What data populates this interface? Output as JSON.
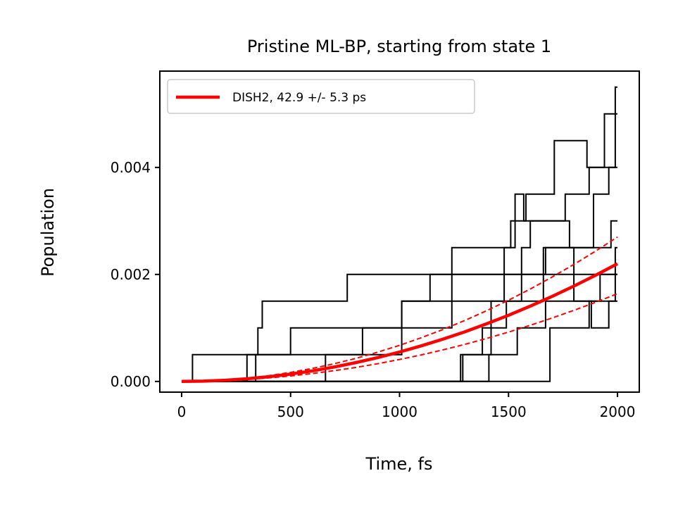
{
  "chart_data": {
    "type": "line",
    "title": "Pristine ML-BP, starting from state 1",
    "xlabel": "Time, fs",
    "ylabel": "Population",
    "xlim": [
      -100,
      2100
    ],
    "ylim": [
      -0.0002,
      0.0058
    ],
    "xticks": [
      {
        "value": 0,
        "label": "0"
      },
      {
        "value": 500,
        "label": "500"
      },
      {
        "value": 1000,
        "label": "1000"
      },
      {
        "value": 1500,
        "label": "1500"
      },
      {
        "value": 2000,
        "label": "2000"
      }
    ],
    "yticks": [
      {
        "value": 0,
        "label": "0.000"
      },
      {
        "value": 0.002,
        "label": "0.002"
      },
      {
        "value": 0.004,
        "label": "0.004"
      }
    ],
    "grid": false,
    "legend": {
      "position": "top-left",
      "entries": [
        {
          "label": "DISH2,  42.9 +/-  5.3 ps",
          "color": "#ff0000"
        }
      ]
    },
    "step_series": [
      {
        "color": "#000000",
        "x": [
          0,
          50,
          350,
          370,
          760,
          2000
        ],
        "y": [
          0,
          0.0005,
          0.001,
          0.0015,
          0.002,
          0.002
        ]
      },
      {
        "color": "#000000",
        "x": [
          0,
          300,
          520,
          1010,
          1240,
          1510,
          1580,
          1710,
          1860,
          1940,
          2000
        ],
        "y": [
          0,
          0.0005,
          0.0005,
          0.001,
          0.0025,
          0.003,
          0.0035,
          0.0045,
          0.004,
          0.005,
          0.005
        ]
      },
      {
        "color": "#000000",
        "x": [
          0,
          340,
          500,
          1010,
          1140,
          1480,
          1530,
          1570,
          1760,
          1870,
          1990,
          2000
        ],
        "y": [
          0,
          0.0005,
          0.001,
          0.0015,
          0.002,
          0.0025,
          0.0035,
          0.003,
          0.0035,
          0.004,
          0.0055,
          0.0055
        ]
      },
      {
        "color": "#000000",
        "x": [
          0,
          660,
          830,
          1010,
          1480,
          1560,
          1600,
          1780,
          1890,
          1960,
          2000
        ],
        "y": [
          0,
          0.0005,
          0.001,
          0.0015,
          0.002,
          0.0025,
          0.003,
          0.0025,
          0.0035,
          0.004,
          0.004
        ]
      },
      {
        "color": "#000000",
        "x": [
          0,
          1280,
          1380,
          1490,
          1560,
          1670,
          1800,
          1920,
          2000
        ],
        "y": [
          0,
          0.0005,
          0.001,
          0.0015,
          0.002,
          0.0025,
          0.0015,
          0.002,
          0.002
        ]
      },
      {
        "color": "#000000",
        "x": [
          0,
          1000,
          1290,
          1420,
          1500,
          1660,
          1850,
          1970,
          2000
        ],
        "y": [
          0,
          0,
          0.0005,
          0.0015,
          0.0015,
          0.0025,
          0.0025,
          0.003,
          0.003
        ]
      },
      {
        "color": "#000000",
        "x": [
          0,
          1290,
          1410,
          1540,
          1670,
          1800,
          1880,
          1960,
          2000
        ],
        "y": [
          0,
          0,
          0.0005,
          0.001,
          0.0015,
          0.0015,
          0.001,
          0.0015,
          0.0015
        ]
      },
      {
        "color": "#000000",
        "x": [
          0,
          1670,
          1690,
          1800,
          1870,
          1990,
          2000
        ],
        "y": [
          0,
          0,
          0.001,
          0.001,
          0.0015,
          0.0025,
          0.0025
        ]
      }
    ],
    "fit_series": [
      {
        "label": "DISH2,  42.9 +/-  5.3 ps",
        "color": "#ff0000",
        "style": "solid",
        "x": [
          0,
          100,
          200,
          300,
          400,
          500,
          600,
          700,
          800,
          900,
          1000,
          1100,
          1200,
          1300,
          1400,
          1500,
          1600,
          1700,
          1800,
          1900,
          2000
        ],
        "y": [
          0,
          5.5e-06,
          2.2e-05,
          4.95e-05,
          8.8e-05,
          0.0001375,
          0.000198,
          0.0002695,
          0.000352,
          0.0004455,
          0.00055,
          0.0006655,
          0.000792,
          0.0009295,
          0.001078,
          0.0012375,
          0.001408,
          0.0015895,
          0.001782,
          0.0019855,
          0.0022
        ]
      },
      {
        "color": "#ff0000",
        "style": "dashed",
        "x": [
          0,
          100,
          200,
          300,
          400,
          500,
          600,
          700,
          800,
          900,
          1000,
          1100,
          1200,
          1300,
          1400,
          1500,
          1600,
          1700,
          1800,
          1900,
          2000
        ],
        "y": [
          0,
          6.75e-06,
          2.7e-05,
          6.075e-05,
          0.000108,
          0.00016875,
          0.000243,
          0.00033075,
          0.000432,
          0.00054675,
          0.000675,
          0.00081675,
          0.000972,
          0.00114075,
          0.001323,
          0.00151875,
          0.001728,
          0.00195075,
          0.002187,
          0.00243675,
          0.0027
        ]
      },
      {
        "color": "#ff0000",
        "style": "dashed",
        "x": [
          0,
          100,
          200,
          300,
          400,
          500,
          600,
          700,
          800,
          900,
          1000,
          1100,
          1200,
          1300,
          1400,
          1500,
          1600,
          1700,
          1800,
          1900,
          2000
        ],
        "y": [
          0,
          4.1e-06,
          1.64e-05,
          3.69e-05,
          6.56e-05,
          0.0001025,
          0.0001476,
          0.0002009,
          0.0002624,
          0.0003321,
          0.00041,
          0.0004961,
          0.0005904,
          0.0006929,
          0.0008036,
          0.0009225,
          0.0010496,
          0.0011849,
          0.0013284,
          0.0014801,
          0.00164
        ]
      }
    ]
  }
}
